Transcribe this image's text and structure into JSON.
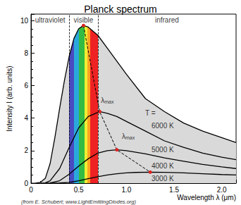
{
  "chart_data": {
    "type": "line",
    "title": "Planck spectrum",
    "x_label": "Wavelength λ (μm)",
    "y_label": "Intensity I (arb. units)",
    "xlim": [
      0,
      2.15
    ],
    "ylim": [
      0,
      10.4
    ],
    "xticks": [
      0,
      0.5,
      {
        "value": 1,
        "label": "1.0"
      },
      1.5,
      {
        "value": 2,
        "label": "2.0"
      }
    ],
    "yticks": [
      0,
      2,
      4,
      6,
      8,
      10
    ],
    "grid": false,
    "series": [
      {
        "name": "6000 K",
        "color": "#000000",
        "line_style": "solid",
        "label_x": 1.38,
        "label_y": 3.55,
        "x": [
          0.05,
          0.1,
          0.15,
          0.2,
          0.25,
          0.3,
          0.35,
          0.4,
          0.45,
          0.5,
          0.55,
          0.6,
          0.7,
          0.8,
          0.9,
          1.0,
          1.2,
          1.4,
          1.6,
          1.8,
          2.0,
          2.15
        ],
        "values": [
          0,
          0.05,
          0.3,
          1.2,
          2.8,
          4.6,
          6.3,
          7.8,
          8.9,
          9.5,
          9.7,
          9.6,
          9.1,
          8.3,
          7.5,
          6.7,
          5.2,
          4.4,
          3.7,
          3.2,
          2.8,
          2.5
        ]
      },
      {
        "name": "5000 K",
        "color": "#000000",
        "line_style": "solid",
        "label_x": 1.38,
        "label_y": 2.05,
        "x": [
          0.1,
          0.15,
          0.2,
          0.3,
          0.4,
          0.5,
          0.6,
          0.72,
          0.8,
          0.9,
          1.0,
          1.2,
          1.4,
          1.6,
          1.8,
          2.0,
          2.15
        ],
        "values": [
          0,
          0.02,
          0.15,
          0.9,
          2.2,
          3.4,
          4.1,
          4.4,
          4.3,
          4.1,
          3.8,
          3.2,
          2.6,
          2.2,
          1.85,
          1.6,
          1.45
        ]
      },
      {
        "name": "4000 K",
        "color": "#000000",
        "line_style": "solid",
        "label_x": 1.38,
        "label_y": 1.05,
        "x": [
          0.15,
          0.2,
          0.3,
          0.4,
          0.5,
          0.6,
          0.7,
          0.8,
          0.9,
          1.0,
          1.2,
          1.4,
          1.6,
          1.8,
          2.0,
          2.15
        ],
        "values": [
          0,
          0.02,
          0.15,
          0.55,
          1.05,
          1.5,
          1.85,
          2.0,
          2.05,
          2.0,
          1.8,
          1.55,
          1.35,
          1.15,
          1.0,
          0.9
        ]
      },
      {
        "name": "3000 K",
        "color": "#000000",
        "line_style": "solid",
        "label_x": 1.38,
        "label_y": 0.3,
        "x": [
          0.2,
          0.3,
          0.4,
          0.5,
          0.6,
          0.7,
          0.8,
          0.9,
          1.0,
          1.1,
          1.25,
          1.4,
          1.6,
          1.8,
          2.0,
          2.15
        ],
        "values": [
          0,
          0.01,
          0.05,
          0.15,
          0.28,
          0.4,
          0.5,
          0.58,
          0.63,
          0.66,
          0.68,
          0.67,
          0.63,
          0.58,
          0.53,
          0.5
        ]
      }
    ],
    "lambda_max": {
      "x": [
        0.55,
        0.72,
        0.9,
        1.25
      ],
      "values": [
        9.7,
        4.4,
        2.05,
        0.68
      ],
      "color": "#e02020",
      "line_style": "dashed",
      "marker": "circle"
    },
    "annotations": [
      {
        "text": "T =",
        "x": 1.25,
        "y": 4.3
      },
      {
        "text": "λmax",
        "x": 0.8,
        "y": 5.1
      },
      {
        "text": "λmax",
        "x": 1.02,
        "y": 2.9
      }
    ],
    "regions": {
      "labels": [
        "ultraviolet",
        "visible",
        "infrared"
      ],
      "edges": [
        0.4,
        0.7
      ]
    },
    "bands": {
      "edges": [
        0.4,
        0.45,
        0.5,
        0.56,
        0.59,
        0.62,
        0.7
      ],
      "colors": [
        "#4a4ac0",
        "#2aa8dc",
        "#33bb44",
        "#eeee33",
        "#ffa522",
        "#ee2222"
      ]
    },
    "source": "(from E. Schubert; www.LightEmittingDiodes.org)"
  }
}
